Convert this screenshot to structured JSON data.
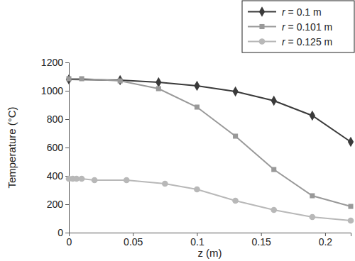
{
  "chart_data": {
    "type": "line",
    "x_label": "z (m)",
    "y_label": "Temperature (°C)",
    "xlim": [
      0,
      0.22
    ],
    "xticks": [
      0,
      0.05,
      0.1,
      0.15,
      0.2
    ],
    "ylim": [
      0,
      1200
    ],
    "yticks": [
      0,
      200,
      400,
      600,
      800,
      1000,
      1200
    ],
    "grid": false,
    "legend": "upper right",
    "series": [
      {
        "name": "r = 0.1 m",
        "color": "#3a3a3a",
        "marker": "diamond",
        "line_style": "solid",
        "x": [
          0,
          0.04,
          0.07,
          0.1,
          0.13,
          0.16,
          0.19,
          0.22
        ],
        "values": [
          1080,
          1075,
          1060,
          1035,
          995,
          930,
          825,
          640
        ]
      },
      {
        "name": "r = 0.101 m",
        "color": "#999999",
        "marker": "square",
        "line_style": "solid",
        "x": [
          0,
          0.01,
          0.04,
          0.07,
          0.1,
          0.13,
          0.16,
          0.19,
          0.22
        ],
        "values": [
          1085,
          1085,
          1070,
          1015,
          885,
          680,
          445,
          260,
          185
        ]
      },
      {
        "name": "r = 0.125 m",
        "color": "#b8b8b8",
        "marker": "circle",
        "line_style": "solid",
        "x": [
          0,
          0.003,
          0.006,
          0.01,
          0.02,
          0.045,
          0.075,
          0.1,
          0.13,
          0.16,
          0.19,
          0.22
        ],
        "values": [
          380,
          380,
          380,
          380,
          370,
          370,
          345,
          305,
          225,
          160,
          110,
          85
        ]
      }
    ]
  }
}
